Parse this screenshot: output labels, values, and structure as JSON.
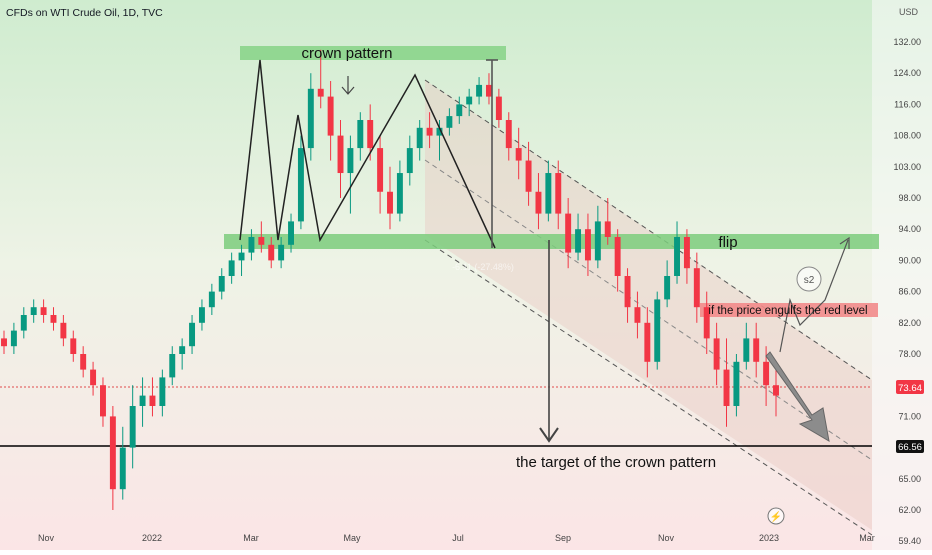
{
  "header": {
    "title": "CFDs on WTI Crude Oil, 1D, TVC",
    "currency": "USD"
  },
  "chart_data": {
    "type": "candlestick",
    "price_axis": {
      "ticks": [
        "132.00",
        "124.00",
        "116.00",
        "108.00",
        "103.00",
        "98.00",
        "94.00",
        "90.00",
        "86.00",
        "82.00",
        "78.00",
        "74.00",
        "71.00",
        "68.00",
        "65.00",
        "62.00",
        "59.40"
      ],
      "current_price": "73.64",
      "line_price": "66.56"
    },
    "time_axis": {
      "labels": [
        "Nov",
        "2022",
        "Mar",
        "May",
        "Jul",
        "Sep",
        "Nov",
        "2023",
        "Mar"
      ]
    },
    "ohlc_series": [
      [
        80,
        81,
        78,
        79
      ],
      [
        79,
        82,
        78,
        81
      ],
      [
        81,
        84,
        80,
        83
      ],
      [
        83,
        85,
        82,
        84
      ],
      [
        84,
        85,
        82,
        83
      ],
      [
        83,
        84,
        81,
        82
      ],
      [
        82,
        83,
        79,
        80
      ],
      [
        80,
        81,
        77,
        78
      ],
      [
        78,
        79,
        75,
        76
      ],
      [
        76,
        77,
        73,
        74
      ],
      [
        74,
        75,
        70,
        71
      ],
      [
        71,
        72,
        62,
        64
      ],
      [
        64,
        70,
        63,
        68
      ],
      [
        68,
        74,
        66,
        72
      ],
      [
        72,
        75,
        70,
        73
      ],
      [
        73,
        75,
        71,
        72
      ],
      [
        72,
        76,
        71,
        75
      ],
      [
        75,
        79,
        74,
        78
      ],
      [
        78,
        80,
        76,
        79
      ],
      [
        79,
        83,
        78,
        82
      ],
      [
        82,
        85,
        81,
        84
      ],
      [
        84,
        87,
        83,
        86
      ],
      [
        86,
        89,
        85,
        88
      ],
      [
        88,
        91,
        87,
        90
      ],
      [
        90,
        92,
        88,
        91
      ],
      [
        91,
        94,
        90,
        93
      ],
      [
        93,
        95,
        91,
        92
      ],
      [
        92,
        93,
        89,
        90
      ],
      [
        90,
        93,
        89,
        92
      ],
      [
        92,
        96,
        91,
        95
      ],
      [
        95,
        108,
        94,
        106
      ],
      [
        106,
        124,
        104,
        120
      ],
      [
        120,
        130,
        115,
        118
      ],
      [
        118,
        122,
        104,
        108
      ],
      [
        108,
        112,
        98,
        102
      ],
      [
        102,
        108,
        96,
        106
      ],
      [
        106,
        114,
        104,
        112
      ],
      [
        112,
        116,
        104,
        106
      ],
      [
        106,
        108,
        96,
        99
      ],
      [
        99,
        103,
        94,
        96
      ],
      [
        96,
        104,
        95,
        102
      ],
      [
        102,
        108,
        100,
        106
      ],
      [
        106,
        112,
        104,
        110
      ],
      [
        110,
        114,
        106,
        108
      ],
      [
        108,
        112,
        104,
        110
      ],
      [
        110,
        115,
        108,
        113
      ],
      [
        113,
        118,
        111,
        116
      ],
      [
        116,
        120,
        113,
        118
      ],
      [
        118,
        123,
        116,
        121
      ],
      [
        121,
        124,
        116,
        118
      ],
      [
        118,
        120,
        110,
        112
      ],
      [
        112,
        114,
        104,
        106
      ],
      [
        106,
        110,
        101,
        104
      ],
      [
        104,
        107,
        97,
        99
      ],
      [
        99,
        102,
        94,
        96
      ],
      [
        96,
        104,
        95,
        102
      ],
      [
        102,
        104,
        94,
        96
      ],
      [
        96,
        98,
        89,
        91
      ],
      [
        91,
        96,
        90,
        94
      ],
      [
        94,
        96,
        88,
        90
      ],
      [
        90,
        97,
        89,
        95
      ],
      [
        95,
        98,
        92,
        93
      ],
      [
        93,
        94,
        86,
        88
      ],
      [
        88,
        89,
        82,
        84
      ],
      [
        84,
        86,
        80,
        82
      ],
      [
        82,
        84,
        75,
        77
      ],
      [
        77,
        86,
        76,
        85
      ],
      [
        85,
        90,
        84,
        88
      ],
      [
        88,
        95,
        87,
        93
      ],
      [
        93,
        94,
        87,
        89
      ],
      [
        89,
        91,
        82,
        84
      ],
      [
        84,
        86,
        78,
        80
      ],
      [
        80,
        82,
        74,
        76
      ],
      [
        76,
        80,
        70,
        72
      ],
      [
        72,
        78,
        71,
        77
      ],
      [
        77,
        82,
        76,
        80
      ],
      [
        80,
        82,
        75,
        77
      ],
      [
        77,
        79,
        72,
        74
      ],
      [
        74,
        76,
        71,
        73
      ]
    ]
  },
  "annotations": {
    "crown": "crown pattern",
    "flip": "flip",
    "red_level": "if the price engulfs the red level",
    "target": "the target of the crown pattern",
    "s2": "s2",
    "faded": "-6.11 (-27.48%)"
  }
}
